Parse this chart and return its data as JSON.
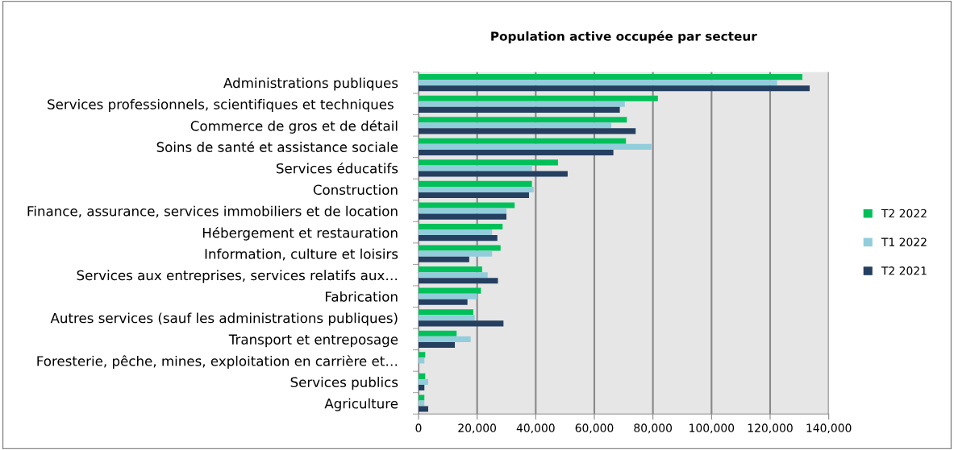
{
  "chart_data": {
    "type": "bar",
    "orientation": "horizontal",
    "title": "Population active occupée par secteur",
    "categories": [
      "Administrations publiques",
      "Services professionnels, scientifiques et techniques ",
      "Commerce de gros et de détail",
      "Soins de santé et assistance sociale",
      "Services éducatifs",
      "Construction",
      "Finance, assurance, services immobiliers et de location",
      "Hébergement et restauration",
      "Information, culture et loisirs",
      "Services aux entreprises, services relatifs aux…",
      "Fabrication",
      "Autres services (sauf les administrations publiques)",
      "Transport et entreposage",
      "Foresterie, pêche, mines, exploitation en carrière et…",
      "Services publics",
      "Agriculture"
    ],
    "series": [
      {
        "name": "T2 2022",
        "color": "#00c05a",
        "values": [
          131000,
          81700,
          71100,
          70800,
          47600,
          38700,
          32800,
          28700,
          28000,
          21700,
          21300,
          18700,
          13000,
          2300,
          2300,
          2000
        ]
      },
      {
        "name": "T1 2022",
        "color": "#92cddc",
        "values": [
          122400,
          70400,
          65800,
          79500,
          38800,
          39300,
          30000,
          25100,
          25100,
          23600,
          20000,
          19200,
          17800,
          2000,
          3300,
          2000
        ]
      },
      {
        "name": "T2 2021",
        "color": "#243f60",
        "values": [
          133500,
          68700,
          74100,
          66500,
          50900,
          37700,
          30000,
          26900,
          17300,
          27100,
          16700,
          29000,
          12400,
          null,
          2000,
          3300
        ]
      }
    ],
    "xlim": [
      0,
      140000
    ],
    "xticks": [
      {
        "value": 0,
        "label": "0"
      },
      {
        "value": 20000,
        "label": "20,000"
      },
      {
        "value": 40000,
        "label": "40,000"
      },
      {
        "value": 60000,
        "label": "60,000"
      },
      {
        "value": 80000,
        "label": "80,000"
      },
      {
        "value": 100000,
        "label": "100,000"
      },
      {
        "value": 120000,
        "label": "120,000"
      },
      {
        "value": 140000,
        "label": "140,000"
      }
    ],
    "grid": "x",
    "legend": "right"
  }
}
